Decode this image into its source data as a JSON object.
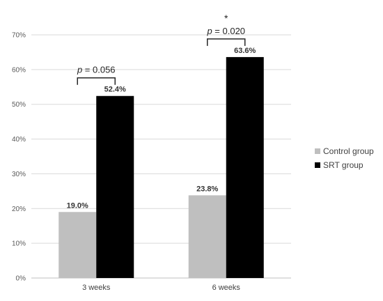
{
  "chart_data": {
    "type": "bar",
    "title": "",
    "xlabel": "",
    "ylabel": "",
    "categories": [
      "3 weeks",
      "6 weeks"
    ],
    "series": [
      {
        "name": "Control group",
        "values": [
          19.0,
          23.8
        ],
        "labels": [
          "19.0%",
          "23.8%"
        ],
        "color": "#bfbfbf"
      },
      {
        "name": "SRT group",
        "values": [
          52.4,
          63.6
        ],
        "labels": [
          "52.4%",
          "63.6%"
        ],
        "color": "#000000"
      }
    ],
    "ylim": [
      0,
      70
    ],
    "yticks": [
      "0%",
      "10%",
      "20%",
      "30%",
      "40%",
      "50%",
      "60%",
      "70%"
    ],
    "grid": true,
    "legend_position": "right",
    "annotations": [
      {
        "category": "3 weeks",
        "p_symbol": "p",
        "p_rest": " = 0.056",
        "star": ""
      },
      {
        "category": "6 weeks",
        "p_symbol": "p",
        "p_rest": " = 0.020",
        "star": "*"
      }
    ]
  }
}
